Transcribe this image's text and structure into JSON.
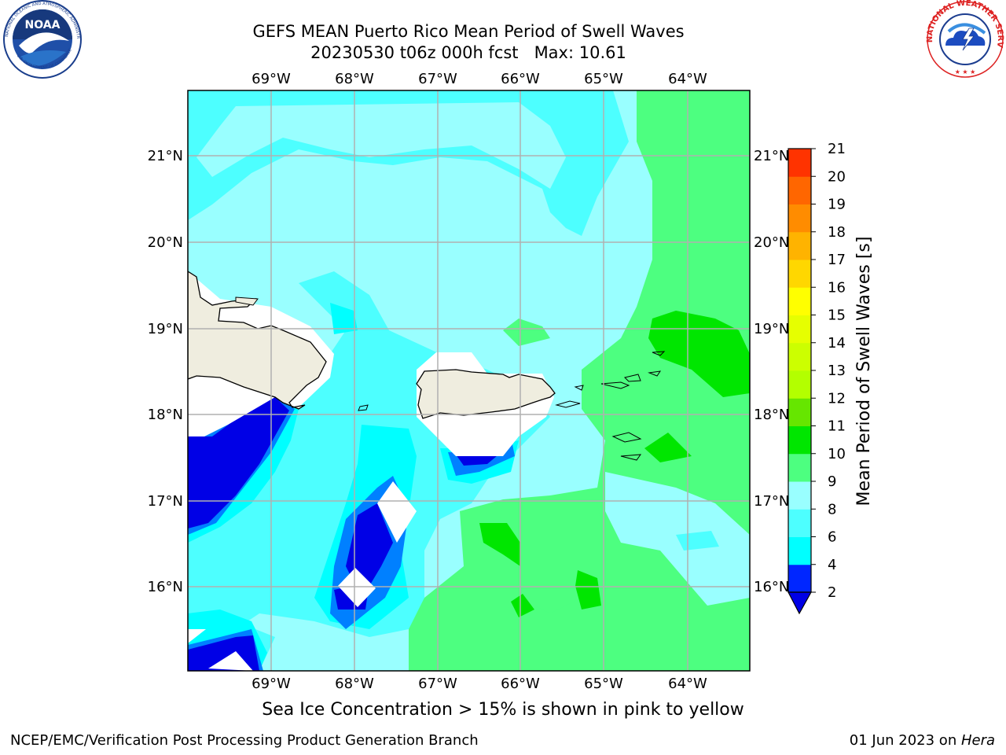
{
  "header": {
    "title_line1": "GEFS MEAN Puerto Rico Mean Period of Swell Waves",
    "title_line2": "20230530 t06z 000h fcst   Max: 10.61"
  },
  "logos": {
    "noaa_text": "NOAA",
    "noaa_ring": "NATIONAL OCEANIC AND ATMOSPHERIC ADMINISTRATION",
    "noaa_ring_bottom": "U.S. DEPARTMENT OF COMMERCE",
    "nws_ring": "NATIONAL WEATHER SERVICE"
  },
  "map": {
    "lon_labels": [
      "69°W",
      "68°W",
      "67°W",
      "66°W",
      "65°W",
      "64°W"
    ],
    "lat_labels": [
      "21°N",
      "20°N",
      "19°N",
      "18°N",
      "17°N",
      "16°N"
    ],
    "colors": {
      "ocean_base": "#99FFFF",
      "land": "#EFEDDF",
      "grid": "#B0B0B0"
    }
  },
  "colorbar": {
    "label": "Mean Period of Swell Waves [s]",
    "ticks": [
      "2",
      "4",
      "6",
      "8",
      "9",
      "10",
      "11",
      "12",
      "13",
      "14",
      "15",
      "16",
      "17",
      "18",
      "19",
      "20",
      "21"
    ],
    "colors": [
      "#0026FF",
      "#00FFFF",
      "#4DFFFF",
      "#99FFFF",
      "#4DFF80",
      "#00E600",
      "#66E600",
      "#B3FF00",
      "#CCFF00",
      "#E6FF00",
      "#FFFF00",
      "#FFD700",
      "#FFB300",
      "#FF8C00",
      "#FF6600",
      "#FF3300",
      "#FF0000"
    ],
    "under_color": "#0000E6"
  },
  "caption": "Sea Ice Concentration > 15% is shown in pink to yellow",
  "footer": {
    "left": "NCEP/EMC/Verification Post Processing Product Generation Branch",
    "date": "01 Jun 2023 on ",
    "host": "Hera"
  }
}
